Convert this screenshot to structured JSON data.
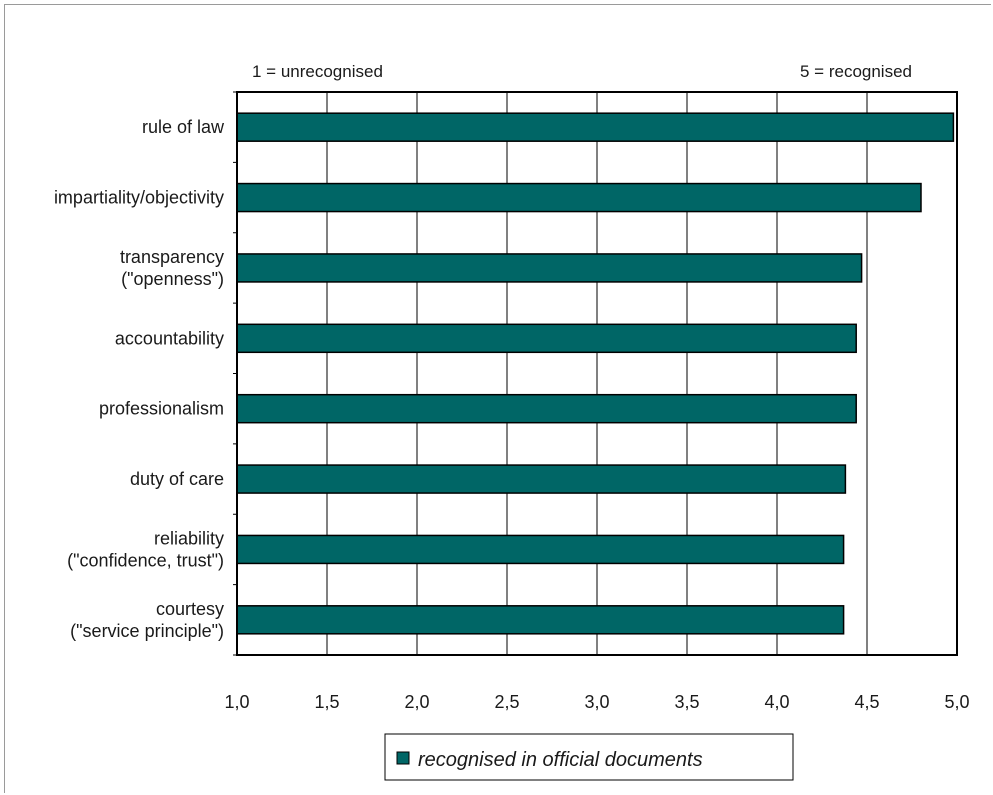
{
  "chart_data": {
    "type": "bar",
    "orientation": "horizontal",
    "categories": [
      [
        "rule of law"
      ],
      [
        "impartiality/objectivity"
      ],
      [
        "transparency",
        "(\"openness\")"
      ],
      [
        "accountability"
      ],
      [
        "professionalism"
      ],
      [
        "duty of care"
      ],
      [
        "reliability",
        "(\"confidence, trust\")"
      ],
      [
        "courtesy",
        "(\"service principle\")"
      ]
    ],
    "series": [
      {
        "name": "recognised in official documents",
        "values": [
          4.98,
          4.8,
          4.47,
          4.44,
          4.44,
          4.38,
          4.37,
          4.37
        ],
        "color": "#006666"
      }
    ],
    "xlim": [
      1.0,
      5.0
    ],
    "x_ticks": [
      "1,0",
      "1,5",
      "2,0",
      "2,5",
      "3,0",
      "3,5",
      "4,0",
      "4,5",
      "5,0"
    ],
    "scale_left_label": "1 = unrecognised",
    "scale_right_label": "5 = recognised",
    "grid": "vertical",
    "legend_position": "bottom"
  }
}
